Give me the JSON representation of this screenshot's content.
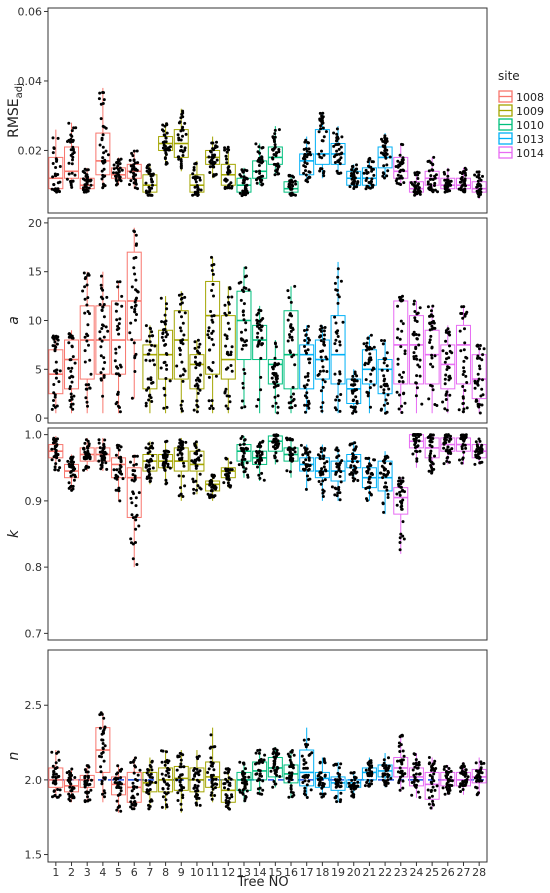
{
  "chart_data": {
    "type": "box",
    "x_label": "Tree NO",
    "x_ticks": [
      "1",
      "2",
      "3",
      "4",
      "5",
      "6",
      "7",
      "8",
      "9",
      "10",
      "11",
      "12",
      "13",
      "14",
      "15",
      "16",
      "17",
      "18",
      "19",
      "20",
      "21",
      "22",
      "23",
      "24",
      "25",
      "26",
      "27",
      "28"
    ],
    "legend": {
      "title": "site",
      "placement": "right",
      "entries": [
        {
          "label": "1008",
          "color": "#F8766D"
        },
        {
          "label": "1009",
          "color": "#A3A500"
        },
        {
          "label": "1010",
          "color": "#00BF7D"
        },
        {
          "label": "1013",
          "color": "#00B0F6"
        },
        {
          "label": "1014",
          "color": "#E76BF3"
        }
      ]
    },
    "tree_site": [
      0,
      0,
      0,
      0,
      0,
      0,
      1,
      1,
      1,
      1,
      1,
      1,
      2,
      2,
      2,
      2,
      3,
      3,
      3,
      3,
      3,
      3,
      4,
      4,
      4,
      4,
      4,
      4
    ],
    "panels": [
      {
        "id": "rmse",
        "y_label": "RMSE",
        "y_label_sub": "adj",
        "ylim": [
          0.002,
          0.061
        ],
        "y_ticks": [
          0.02,
          0.04,
          0.06
        ],
        "y_tick_labels": [
          "0.02",
          "0.04",
          "0.06"
        ],
        "reference_line": null,
        "boxes": [
          [
            0.008,
            0.009,
            0.012,
            0.018,
            0.026
          ],
          [
            0.009,
            0.012,
            0.014,
            0.021,
            0.028
          ],
          [
            0.008,
            0.009,
            0.01,
            0.012,
            0.015
          ],
          [
            0.009,
            0.013,
            0.017,
            0.025,
            0.038
          ],
          [
            0.01,
            0.012,
            0.013,
            0.015,
            0.018
          ],
          [
            0.009,
            0.012,
            0.014,
            0.016,
            0.02
          ],
          [
            0.007,
            0.008,
            0.01,
            0.013,
            0.016
          ],
          [
            0.016,
            0.02,
            0.022,
            0.024,
            0.028
          ],
          [
            0.014,
            0.018,
            0.022,
            0.026,
            0.032
          ],
          [
            0.007,
            0.008,
            0.01,
            0.013,
            0.017
          ],
          [
            0.012,
            0.016,
            0.018,
            0.02,
            0.024
          ],
          [
            0.009,
            0.01,
            0.013,
            0.016,
            0.021
          ],
          [
            0.007,
            0.008,
            0.01,
            0.012,
            0.015
          ],
          [
            0.01,
            0.012,
            0.014,
            0.017,
            0.022
          ],
          [
            0.013,
            0.016,
            0.018,
            0.021,
            0.027
          ],
          [
            0.007,
            0.008,
            0.009,
            0.011,
            0.013
          ],
          [
            0.011,
            0.013,
            0.017,
            0.019,
            0.024
          ],
          [
            0.012,
            0.016,
            0.019,
            0.026,
            0.031
          ],
          [
            0.013,
            0.016,
            0.019,
            0.022,
            0.027
          ],
          [
            0.009,
            0.01,
            0.012,
            0.014,
            0.016
          ],
          [
            0.009,
            0.01,
            0.012,
            0.015,
            0.018
          ],
          [
            0.012,
            0.015,
            0.018,
            0.021,
            0.025
          ],
          [
            0.01,
            0.012,
            0.014,
            0.018,
            0.022
          ],
          [
            0.007,
            0.008,
            0.009,
            0.011,
            0.014
          ],
          [
            0.008,
            0.01,
            0.012,
            0.014,
            0.018
          ],
          [
            0.008,
            0.009,
            0.01,
            0.012,
            0.015
          ],
          [
            0.008,
            0.009,
            0.01,
            0.012,
            0.015
          ],
          [
            0.006,
            0.008,
            0.009,
            0.011,
            0.014
          ]
        ]
      },
      {
        "id": "a",
        "y_label": "a",
        "y_label_italic": true,
        "ylim": [
          -0.5,
          20.5
        ],
        "y_ticks": [
          0,
          5,
          10,
          15,
          20
        ],
        "y_tick_labels": [
          "0",
          "5",
          "10",
          "15",
          "20"
        ],
        "reference_line": null,
        "boxes": [
          [
            0.5,
            2.5,
            4.5,
            7.0,
            8.5
          ],
          [
            0.5,
            3.0,
            6.0,
            8.0,
            9.0
          ],
          [
            0.5,
            4.0,
            8.0,
            11.5,
            15.0
          ],
          [
            0.5,
            4.5,
            8.0,
            11.5,
            15.0
          ],
          [
            0.5,
            4.5,
            8.0,
            12.0,
            14.0
          ],
          [
            2.0,
            8.0,
            12.0,
            17.0,
            19.5
          ],
          [
            0.5,
            3.0,
            6.5,
            7.5,
            9.5
          ],
          [
            0.5,
            4.0,
            6.5,
            9.0,
            12.5
          ],
          [
            0.5,
            4.0,
            8.0,
            11.0,
            13.0
          ],
          [
            0.5,
            3.0,
            5.5,
            6.5,
            8.0
          ],
          [
            0.5,
            4.5,
            10.5,
            14.0,
            16.5
          ],
          [
            0.5,
            4.0,
            6.0,
            10.5,
            13.5
          ],
          [
            1.0,
            6.0,
            10.0,
            13.0,
            15.5
          ],
          [
            0.5,
            6.0,
            8.0,
            9.5,
            11.5
          ],
          [
            0.5,
            3.5,
            5.5,
            6.0,
            8.0
          ],
          [
            0.5,
            3.0,
            6.5,
            11.0,
            13.5
          ],
          [
            0.5,
            3.0,
            6.5,
            7.5,
            9.5
          ],
          [
            0.5,
            4.0,
            6.0,
            8.0,
            9.5
          ],
          [
            0.5,
            3.5,
            6.5,
            10.5,
            16.0
          ],
          [
            0.5,
            1.5,
            3.0,
            4.0,
            5.0
          ],
          [
            0.5,
            3.5,
            5.0,
            7.0,
            8.5
          ],
          [
            0.5,
            2.5,
            5.0,
            6.0,
            8.0
          ],
          [
            0.5,
            3.5,
            7.5,
            12.0,
            12.5
          ],
          [
            0.5,
            3.5,
            7.5,
            10.5,
            12.0
          ],
          [
            0.5,
            3.5,
            6.5,
            9.0,
            11.5
          ],
          [
            0.5,
            3.0,
            5.5,
            7.5,
            9.5
          ],
          [
            0.5,
            3.5,
            7.5,
            9.5,
            11.5
          ],
          [
            0.5,
            2.0,
            4.0,
            6.5,
            7.5
          ]
        ]
      },
      {
        "id": "k",
        "y_label": "k",
        "y_label_italic": true,
        "ylim": [
          0.69,
          1.01
        ],
        "y_ticks": [
          0.7,
          0.8,
          0.9,
          1.0
        ],
        "y_tick_labels": [
          "0.7",
          "0.8",
          "0.9",
          "1.0"
        ],
        "reference_line": null,
        "boxes": [
          [
            0.945,
            0.965,
            0.975,
            0.985,
            0.998
          ],
          [
            0.915,
            0.935,
            0.945,
            0.955,
            0.97
          ],
          [
            0.945,
            0.96,
            0.97,
            0.98,
            0.995
          ],
          [
            0.945,
            0.96,
            0.97,
            0.98,
            0.995
          ],
          [
            0.9,
            0.935,
            0.955,
            0.965,
            0.985
          ],
          [
            0.8,
            0.875,
            0.935,
            0.95,
            0.97
          ],
          [
            0.925,
            0.945,
            0.96,
            0.97,
            0.99
          ],
          [
            0.925,
            0.95,
            0.96,
            0.97,
            0.99
          ],
          [
            0.9,
            0.945,
            0.96,
            0.98,
            0.995
          ],
          [
            0.91,
            0.945,
            0.955,
            0.975,
            0.99
          ],
          [
            0.9,
            0.915,
            0.925,
            0.93,
            0.94
          ],
          [
            0.92,
            0.935,
            0.945,
            0.95,
            0.965
          ],
          [
            0.935,
            0.96,
            0.975,
            0.985,
            0.998
          ],
          [
            0.93,
            0.955,
            0.965,
            0.975,
            0.99
          ],
          [
            0.955,
            0.975,
            0.99,
            0.998,
            1.0
          ],
          [
            0.935,
            0.96,
            0.97,
            0.98,
            0.995
          ],
          [
            0.915,
            0.945,
            0.955,
            0.965,
            0.985
          ],
          [
            0.9,
            0.935,
            0.945,
            0.965,
            0.985
          ],
          [
            0.9,
            0.93,
            0.945,
            0.96,
            0.98
          ],
          [
            0.93,
            0.95,
            0.96,
            0.97,
            0.99
          ],
          [
            0.9,
            0.92,
            0.935,
            0.95,
            0.965
          ],
          [
            0.88,
            0.915,
            0.935,
            0.96,
            0.975
          ],
          [
            0.82,
            0.88,
            0.905,
            0.92,
            0.935
          ],
          [
            0.95,
            0.98,
            0.99,
            1.0,
            1.0
          ],
          [
            0.94,
            0.965,
            0.98,
            0.995,
            1.0
          ],
          [
            0.955,
            0.975,
            0.985,
            0.995,
            1.0
          ],
          [
            0.955,
            0.975,
            0.985,
            0.995,
            1.0
          ],
          [
            0.955,
            0.965,
            0.975,
            0.985,
            0.995
          ]
        ]
      },
      {
        "id": "n",
        "y_label": "n",
        "y_label_italic": true,
        "ylim": [
          1.45,
          2.87
        ],
        "y_ticks": [
          1.5,
          2.0,
          2.5
        ],
        "y_tick_labels": [
          "1.5",
          "2.0",
          "2.5"
        ],
        "reference_line": {
          "y": 2.0,
          "color": "#1F4CE0",
          "style": "dashed"
        },
        "boxes": [
          [
            1.88,
            1.95,
            2.0,
            2.08,
            2.2
          ],
          [
            1.85,
            1.92,
            1.96,
            2.0,
            2.08
          ],
          [
            1.85,
            1.95,
            2.0,
            2.03,
            2.1
          ],
          [
            1.85,
            2.05,
            2.2,
            2.35,
            2.45
          ],
          [
            1.78,
            1.9,
            1.97,
            2.02,
            2.1
          ],
          [
            1.8,
            1.85,
            1.95,
            2.05,
            2.15
          ],
          [
            1.8,
            1.92,
            1.98,
            2.05,
            2.15
          ],
          [
            1.8,
            1.92,
            2.0,
            2.08,
            2.2
          ],
          [
            1.78,
            1.93,
            2.01,
            2.09,
            2.2
          ],
          [
            1.82,
            1.92,
            2.0,
            2.08,
            2.2
          ],
          [
            1.85,
            1.95,
            2.02,
            2.12,
            2.35
          ],
          [
            1.8,
            1.85,
            1.93,
            2.0,
            2.08
          ],
          [
            1.85,
            1.93,
            2.0,
            2.05,
            2.12
          ],
          [
            1.9,
            2.0,
            2.06,
            2.12,
            2.2
          ],
          [
            1.95,
            2.02,
            2.08,
            2.15,
            2.22
          ],
          [
            1.88,
            1.98,
            2.04,
            2.1,
            2.2
          ],
          [
            1.88,
            1.96,
            2.05,
            2.2,
            2.35
          ],
          [
            1.88,
            1.95,
            2.01,
            2.05,
            2.15
          ],
          [
            1.85,
            1.93,
            1.98,
            2.02,
            2.12
          ],
          [
            1.88,
            1.95,
            1.98,
            2.0,
            2.05
          ],
          [
            1.95,
            2.0,
            2.05,
            2.08,
            2.15
          ],
          [
            1.95,
            2.02,
            2.06,
            2.1,
            2.18
          ],
          [
            1.92,
            2.02,
            2.08,
            2.15,
            2.3
          ],
          [
            1.88,
            1.96,
            2.02,
            2.08,
            2.18
          ],
          [
            1.8,
            1.87,
            1.97,
            2.05,
            2.15
          ],
          [
            1.9,
            1.96,
            2.0,
            2.05,
            2.1
          ],
          [
            1.9,
            1.96,
            2.0,
            2.05,
            2.12
          ],
          [
            1.9,
            1.98,
            2.02,
            2.07,
            2.15
          ]
        ]
      }
    ]
  }
}
